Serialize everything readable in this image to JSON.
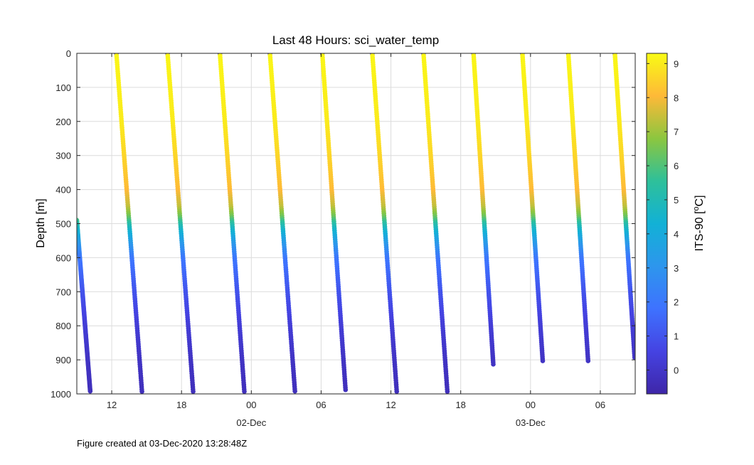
{
  "chart_data": {
    "type": "scatter",
    "title": "Last 48 Hours: sci_water_temp",
    "ylabel": "Depth [m]",
    "xlabel": "",
    "x_unit": "hours since 01-Dec-2020 00:00",
    "xlim": [
      9.0,
      57.0
    ],
    "ylim": [
      0,
      1000
    ],
    "y_reversed": true,
    "grid": true,
    "x_ticks": [
      {
        "value": 12,
        "label": "12"
      },
      {
        "value": 18,
        "label": "18"
      },
      {
        "value": 24,
        "label": "00"
      },
      {
        "value": 30,
        "label": "06"
      },
      {
        "value": 36,
        "label": "12"
      },
      {
        "value": 42,
        "label": "18"
      },
      {
        "value": 48,
        "label": "00"
      },
      {
        "value": 54,
        "label": "06"
      }
    ],
    "date_labels": [
      {
        "value": 24,
        "label": "02-Dec"
      },
      {
        "value": 48,
        "label": "03-Dec"
      }
    ],
    "y_ticks": [
      0,
      100,
      200,
      300,
      400,
      500,
      600,
      700,
      800,
      900,
      1000
    ],
    "colorbar": {
      "label": "ITS-90 [°C]",
      "label_base": "ITS-90 [",
      "label_sup": "o",
      "label_end": "C]",
      "range": [
        -0.7,
        9.3
      ],
      "ticks": [
        0,
        1,
        2,
        3,
        4,
        5,
        6,
        7,
        8,
        9
      ],
      "colormap": "parula"
    },
    "profiles": [
      {
        "t_start": 9.0,
        "t_end": 10.15,
        "depth_start": 490,
        "depth_end": 992
      },
      {
        "t_start": 12.4,
        "t_end": 14.6,
        "depth_start": 0,
        "depth_end": 993
      },
      {
        "t_start": 16.8,
        "t_end": 19.0,
        "depth_start": 0,
        "depth_end": 993
      },
      {
        "t_start": 21.3,
        "t_end": 23.4,
        "depth_start": 0,
        "depth_end": 993
      },
      {
        "t_start": 25.6,
        "t_end": 27.75,
        "depth_start": 0,
        "depth_end": 992
      },
      {
        "t_start": 30.1,
        "t_end": 32.1,
        "depth_start": 0,
        "depth_end": 988
      },
      {
        "t_start": 34.4,
        "t_end": 36.5,
        "depth_start": 0,
        "depth_end": 993
      },
      {
        "t_start": 38.8,
        "t_end": 40.85,
        "depth_start": 0,
        "depth_end": 993
      },
      {
        "t_start": 43.1,
        "t_end": 44.8,
        "depth_start": 0,
        "depth_end": 913
      },
      {
        "t_start": 47.3,
        "t_end": 49.05,
        "depth_start": 0,
        "depth_end": 903
      },
      {
        "t_start": 51.25,
        "t_end": 52.95,
        "depth_start": 0,
        "depth_end": 903
      },
      {
        "t_start": 55.25,
        "t_end": 56.95,
        "depth_start": 0,
        "depth_end": 893
      }
    ],
    "temperature_profile": {
      "depth": [
        0,
        200,
        300,
        400,
        450,
        480,
        500,
        520,
        560,
        600,
        700,
        800,
        900,
        1000
      ],
      "temp": [
        9.2,
        9.0,
        8.6,
        8.1,
        7.4,
        6.4,
        5.3,
        4.5,
        3.2,
        2.0,
        1.0,
        0.3,
        -0.1,
        -0.3
      ]
    }
  },
  "footer": "Figure created at 03-Dec-2020 13:28:48Z"
}
